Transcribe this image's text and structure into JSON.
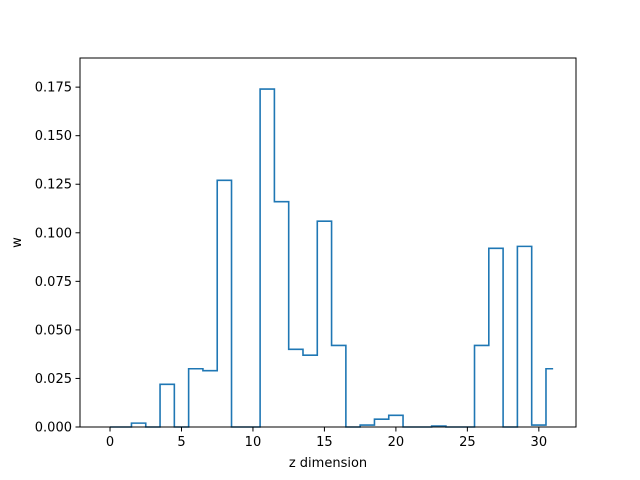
{
  "chart_data": {
    "type": "line",
    "step": "mid",
    "xlabel": "z dimension",
    "ylabel": "w",
    "xlim": [
      -2.1,
      32.6
    ],
    "ylim": [
      0,
      0.19
    ],
    "xticks": [
      0,
      5,
      10,
      15,
      20,
      25,
      30
    ],
    "yticks": [
      0.0,
      0.025,
      0.05,
      0.075,
      0.1,
      0.125,
      0.15,
      0.175
    ],
    "ytick_labels": [
      "0.000",
      "0.025",
      "0.050",
      "0.075",
      "0.100",
      "0.125",
      "0.150",
      "0.175"
    ],
    "grid": false,
    "series": [
      {
        "color": "#1f77b4",
        "x": [
          0,
          1,
          2,
          3,
          4,
          5,
          6,
          7,
          8,
          9,
          10,
          11,
          12,
          13,
          14,
          15,
          16,
          17,
          18,
          19,
          20,
          21,
          22,
          23,
          24,
          25,
          26,
          27,
          28,
          29,
          30,
          31
        ],
        "values": [
          0.0,
          0.0,
          0.002,
          0.0,
          0.022,
          0.0,
          0.03,
          0.029,
          0.127,
          0.0,
          0.0,
          0.174,
          0.116,
          0.04,
          0.037,
          0.106,
          0.042,
          0.0,
          0.001,
          0.004,
          0.006,
          0.0,
          0.0,
          0.0005,
          0.0,
          0.0,
          0.042,
          0.092,
          0.0,
          0.093,
          0.001,
          0.03
        ]
      }
    ]
  }
}
